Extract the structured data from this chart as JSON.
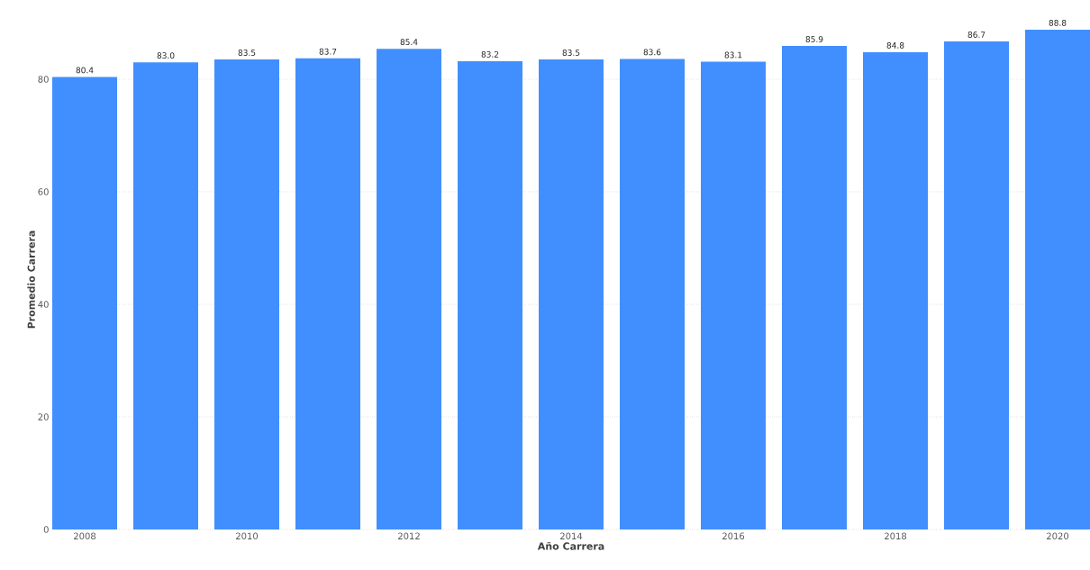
{
  "chart_data": {
    "type": "bar",
    "xlabel": "Año Carrera",
    "ylabel": "Promedio Carrera",
    "x": [
      2008,
      2009,
      2010,
      2011,
      2012,
      2013,
      2014,
      2015,
      2016,
      2017,
      2018,
      2019,
      2020
    ],
    "values": [
      80.4,
      83.0,
      83.5,
      83.7,
      85.4,
      83.2,
      83.5,
      83.6,
      83.1,
      85.9,
      84.8,
      86.7,
      88.8
    ],
    "color": "#418fff",
    "xlim": [
      2007.6,
      2020.4
    ],
    "xticks": [
      2008,
      2010,
      2012,
      2014,
      2016,
      2018,
      2020
    ],
    "value_labels": [
      "80.4",
      "83.0",
      "83.5",
      "83.7",
      "85.4",
      "83.2",
      "83.5",
      "83.6",
      "83.1",
      "85.9",
      "84.8",
      "86.7",
      "88.8"
    ],
    "ylim": [
      0,
      88.8
    ],
    "yticks": [
      0,
      20,
      40,
      60,
      80
    ],
    "grid": "y"
  }
}
